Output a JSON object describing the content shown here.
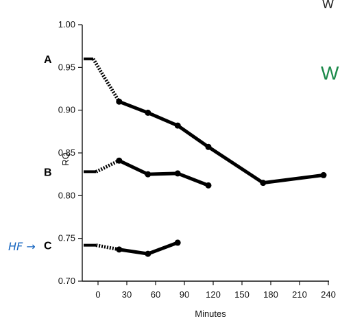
{
  "chart_data": {
    "type": "line",
    "title": "",
    "xlabel": "Minutes",
    "ylabel": "RQ",
    "xlim": [
      -20,
      245
    ],
    "ylim": [
      0.7,
      1.0
    ],
    "x_ticks": [
      0,
      30,
      60,
      90,
      120,
      150,
      180,
      210,
      240
    ],
    "y_ticks": [
      0.7,
      0.75,
      0.8,
      0.85,
      0.9,
      0.95,
      1.0
    ],
    "y_tick_labels": [
      "0.70",
      "0.75",
      "0.80",
      "0.85",
      "0.90",
      "0.95",
      "1.00"
    ],
    "grid": false,
    "series": [
      {
        "name": "A",
        "baseline_x": [
          -15,
          -5
        ],
        "baseline_y": [
          0.96,
          0.96
        ],
        "x": [
          22,
          52,
          83,
          115,
          172,
          235
        ],
        "values": [
          0.91,
          0.897,
          0.882,
          0.857,
          0.815,
          0.824
        ]
      },
      {
        "name": "B",
        "baseline_x": [
          -15,
          -2
        ],
        "baseline_y": [
          0.828,
          0.828
        ],
        "x": [
          22,
          52,
          83,
          115
        ],
        "values": [
          0.841,
          0.825,
          0.826,
          0.812
        ]
      },
      {
        "name": "C",
        "baseline_x": [
          -15,
          -2
        ],
        "baseline_y": [
          0.742,
          0.742
        ],
        "x": [
          22,
          52,
          83
        ],
        "values": [
          0.737,
          0.732,
          0.745
        ]
      }
    ]
  },
  "annotations": {
    "handwritten_note": "HF →",
    "top_right_text": "W",
    "green_right_text": "W"
  },
  "colors": {
    "line": "#000000",
    "annotation": "#1565c0",
    "green_text": "#1b8a4a"
  }
}
